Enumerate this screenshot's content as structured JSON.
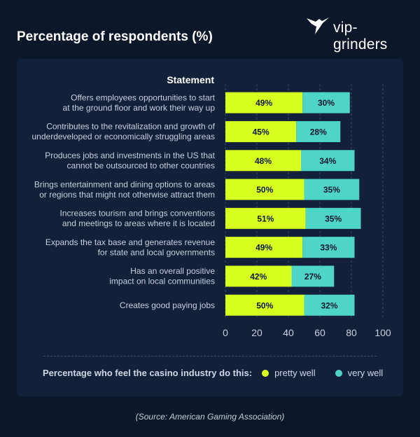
{
  "header": {
    "title": "Percentage of respondents (%)"
  },
  "logo": {
    "text": "vip-grinders",
    "icon": "hummingbird-icon"
  },
  "colors": {
    "background": "#0c1729",
    "panel": "#13203a",
    "pretty_well": "#d7ff1f",
    "very_well": "#4fd4c8"
  },
  "chart_data": {
    "type": "bar",
    "orientation": "horizontal",
    "stacked": true,
    "category_header": "Statement",
    "categories": [
      [
        "Offers employees opportunities to start",
        "at the ground floor and work their way up"
      ],
      [
        "Contributes to the revitalization and growth of",
        "underdeveloped or economically struggling areas"
      ],
      [
        "Produces jobs and investments in the US that",
        "cannot be outsourced to other countries"
      ],
      [
        "Brings entertainment and dining options to areas",
        "or regions that might not otherwise attract them"
      ],
      [
        "Increases tourism and brings conventions",
        "and meetings to areas where it is located"
      ],
      [
        "Expands the tax base and generates revenue",
        "for state and local governments"
      ],
      [
        "Has an overall positive",
        "impact on local communities"
      ],
      [
        "Creates good paying jobs"
      ]
    ],
    "series": [
      {
        "name": "pretty well",
        "color": "#d7ff1f",
        "values": [
          49,
          45,
          48,
          50,
          51,
          49,
          42,
          50
        ]
      },
      {
        "name": "very well",
        "color": "#4fd4c8",
        "values": [
          30,
          28,
          34,
          35,
          35,
          33,
          27,
          32
        ]
      }
    ],
    "xlim": [
      0,
      100
    ],
    "xticks": [
      0,
      20,
      40,
      60,
      80,
      100
    ],
    "value_suffix": "%",
    "grid": "vertical dashed",
    "legend_title": "Percentage who feel the casino industry do this:",
    "legend_position": "bottom"
  },
  "source": "(Source: American Gaming Association)"
}
